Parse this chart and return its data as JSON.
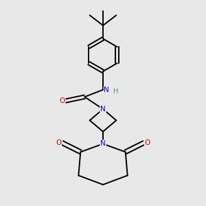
{
  "background_color": "#e8e8e8",
  "bond_color": "#000000",
  "atom_colors": {
    "N": "#0000cc",
    "O": "#cc0000",
    "H": "#5a9090",
    "C": "#000000"
  },
  "figsize": [
    3.0,
    3.0
  ],
  "dpi": 100
}
